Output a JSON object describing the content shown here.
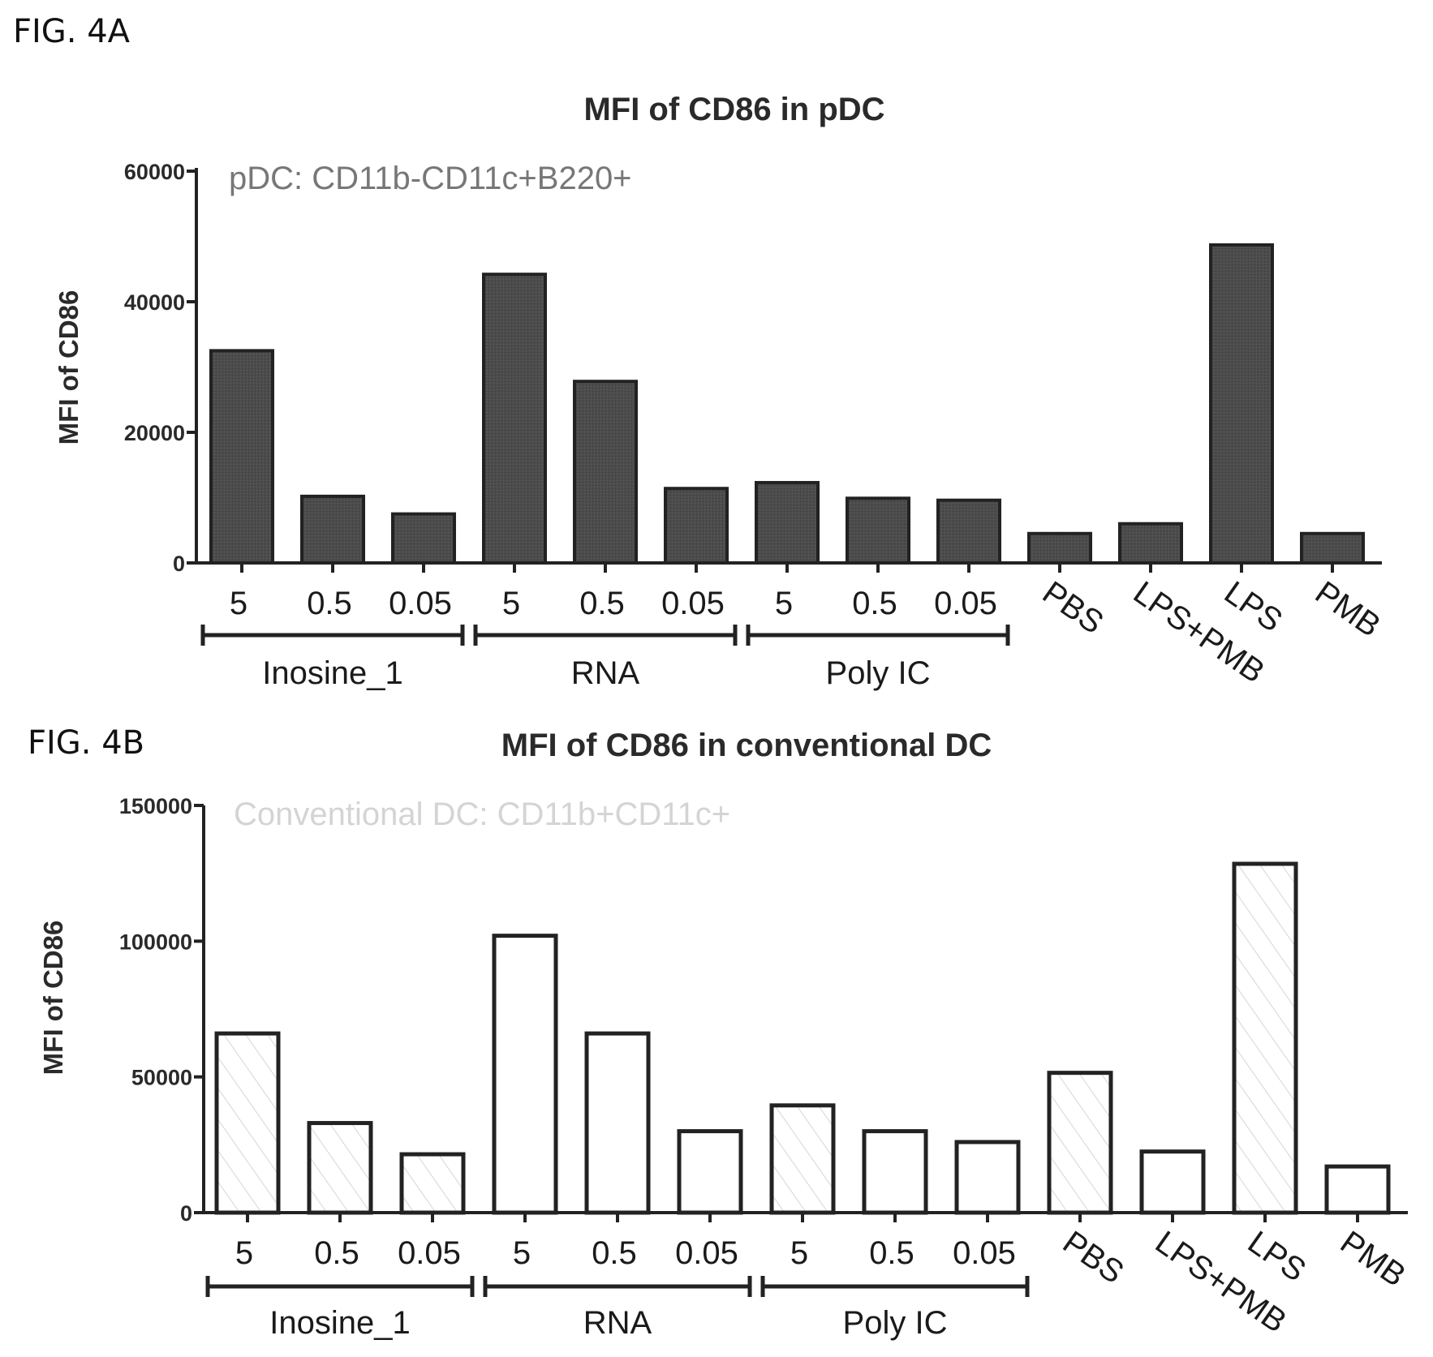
{
  "figures": [
    {
      "label": "FIG. 4A"
    },
    {
      "label": "FIG. 4B"
    }
  ],
  "chart_data": [
    {
      "type": "bar",
      "title": "MFI of CD86 in pDC",
      "annotation": "pDC: CD11b-CD11c+B220+",
      "xlabel": "",
      "ylabel": "MFI of CD86",
      "ylim": [
        0,
        60000
      ],
      "yticks": [
        "0",
        "20000",
        "40000",
        "60000"
      ],
      "categories": [
        "5",
        "0.5",
        "0.05",
        "5",
        "0.5",
        "0.05",
        "5",
        "0.5",
        "0.05",
        "PBS",
        "LPS+PMB",
        "LPS",
        "PMB"
      ],
      "groups": [
        {
          "name": "Inosine_1",
          "start": 0,
          "end": 2
        },
        {
          "name": "RNA",
          "start": 3,
          "end": 5
        },
        {
          "name": "Poly IC",
          "start": 6,
          "end": 8
        }
      ],
      "values": [
        32500,
        10200,
        7500,
        44200,
        27800,
        11400,
        12300,
        9900,
        9600,
        4500,
        6000,
        48700,
        4500
      ],
      "bar_color": "#4a4a4a",
      "annotation_color": "#777777",
      "grid": false
    },
    {
      "type": "bar",
      "title": "MFI of CD86 in conventional DC",
      "annotation": "Conventional DC: CD11b+CD11c+",
      "xlabel": "",
      "ylabel": "MFI of CD86",
      "ylim": [
        0,
        150000
      ],
      "yticks": [
        "0",
        "50000",
        "100000",
        "150000"
      ],
      "categories": [
        "5",
        "0.5",
        "0.05",
        "5",
        "0.5",
        "0.05",
        "5",
        "0.5",
        "0.05",
        "PBS",
        "LPS+PMB",
        "LPS",
        "PMB"
      ],
      "groups": [
        {
          "name": "Inosine_1",
          "start": 0,
          "end": 2
        },
        {
          "name": "RNA",
          "start": 3,
          "end": 5
        },
        {
          "name": "Poly IC",
          "start": 6,
          "end": 8
        }
      ],
      "values": [
        66000,
        33000,
        21500,
        102000,
        66000,
        30000,
        39500,
        30000,
        26000,
        51500,
        22500,
        128500,
        17000
      ],
      "bar_color": "#ffffff",
      "annotation_color": "#d4d4d4",
      "grid": false
    }
  ]
}
